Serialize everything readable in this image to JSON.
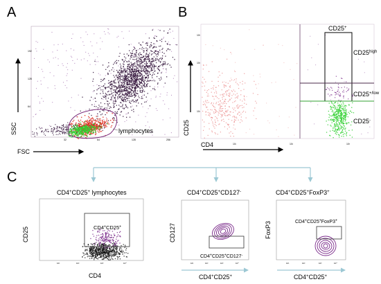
{
  "panels": {
    "A": {
      "letter": "A",
      "y_label": "SSC",
      "x_label": "FSC",
      "gate_label": "lymphocytes",
      "x_tick_labels": [
        "32",
        "64",
        "128",
        "256"
      ],
      "y_tick_labels": [
        "64",
        "128",
        "192"
      ]
    },
    "B": {
      "letter": "B",
      "y_label": "CD25",
      "x_label": "CD4",
      "gate_title": "CD25",
      "gate_title_sup": "+",
      "high_label": "CD25",
      "high_label_sup": "high",
      "low_label": "CD25",
      "low_label_sup": "+/low",
      "neg_label": "CD25",
      "neg_label_sup": "-",
      "x_tick_labels": [
        "10¹",
        "10²",
        "10³"
      ],
      "y_tick_labels": [
        "10¹",
        "10²",
        "10³"
      ]
    },
    "C": {
      "letter": "C",
      "plot1": {
        "title_parts": [
          "CD4",
          "+",
          "CD25",
          "+",
          " lymphocytes"
        ],
        "y_label": "CD25",
        "x_label": "CD4",
        "gate_label_parts": [
          "CD4",
          "+",
          "CD25",
          "+"
        ],
        "x_tick_labels": [
          "10¹",
          "10²",
          "10³",
          "10⁴"
        ]
      },
      "plot2": {
        "title_parts": [
          "CD4",
          "+",
          "CD25",
          "+",
          "CD127",
          "-"
        ],
        "y_label": "CD127",
        "x_label_parts": [
          "CD4",
          "+",
          "CD25",
          "+"
        ],
        "gate_label_parts": [
          "CD4",
          "+",
          "CD25",
          "+",
          "CD127",
          "-"
        ],
        "x_tick_labels": [
          "10¹",
          "10²",
          "10³",
          "10⁴"
        ]
      },
      "plot3": {
        "title_parts": [
          "CD4",
          "+",
          "CD25",
          "+",
          "FoxP3",
          "+"
        ],
        "y_label": "FoxP3",
        "x_label_parts": [
          "CD4",
          "+",
          "CD25",
          "+"
        ],
        "gate_label_parts": [
          "CD4",
          "+",
          "CD25",
          "+",
          "FoxP3",
          "+"
        ],
        "x_tick_labels": [
          "10¹",
          "10²",
          "10³",
          "10⁴"
        ]
      }
    }
  },
  "colors": {
    "dark_population": "#2a0a33",
    "purple_population": "#7a2a8a",
    "red_population": "#e03020",
    "green_population": "#30d030",
    "pink_population": "#e88080",
    "gate_line": "#7a2a7a",
    "bracket_line": "#9cc8d4",
    "axis": "#8a6a8a",
    "green_line": "#30a030"
  }
}
